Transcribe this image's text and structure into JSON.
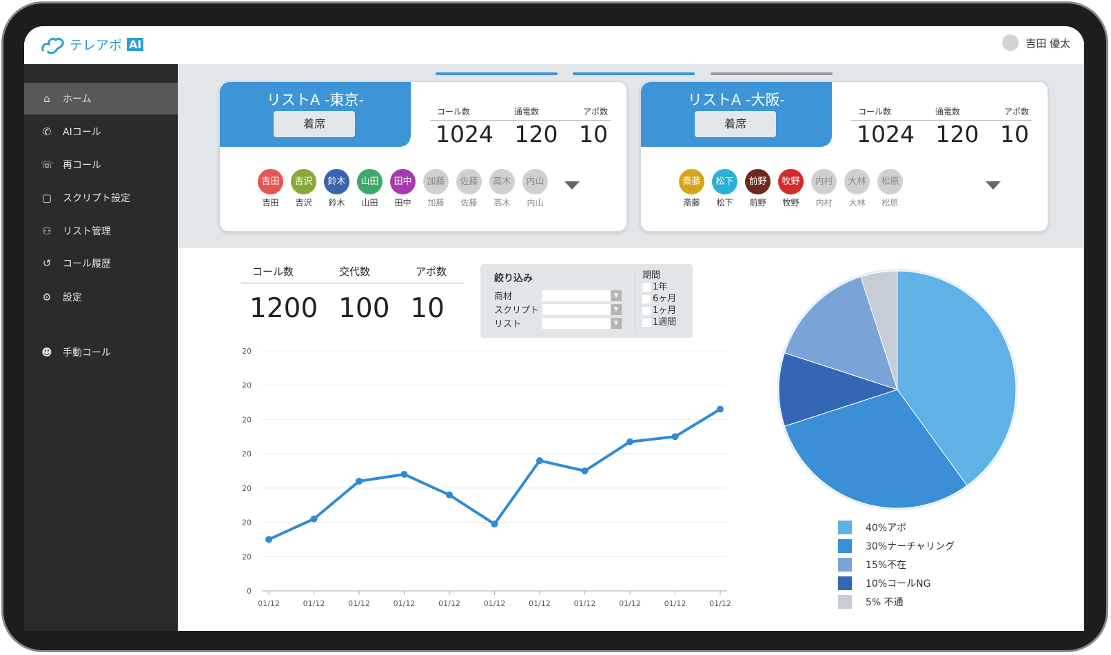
{
  "app": {
    "logo_text": "テレアポ",
    "logo_badge": "AI",
    "user_name": "吉田 優太"
  },
  "sidebar": {
    "items": [
      {
        "label": "ホーム",
        "icon": "home-icon",
        "glyph": "⌂",
        "active": true
      },
      {
        "label": "AIコール",
        "icon": "phone-icon",
        "glyph": "✆"
      },
      {
        "label": "再コール",
        "icon": "phone-redial-icon",
        "glyph": "☏"
      },
      {
        "label": "スクリプト設定",
        "icon": "note-icon",
        "glyph": "▢"
      },
      {
        "label": "リスト管理",
        "icon": "users-icon",
        "glyph": "⚇"
      },
      {
        "label": "コール履歴",
        "icon": "history-icon",
        "glyph": "↺"
      },
      {
        "label": "設定",
        "icon": "gear-icon",
        "glyph": "⚙"
      },
      {
        "label": "手動コール",
        "icon": "manual-call-icon",
        "glyph": "☻"
      }
    ]
  },
  "tabs": [
    {
      "color": "#3d95d8"
    },
    {
      "color": "#3d95d8"
    },
    {
      "color": "#9a9a9a"
    }
  ],
  "lists": [
    {
      "title": "リストA -東京-",
      "status": "着席",
      "stat_labels": [
        "コール数",
        "通電数",
        "アポ数"
      ],
      "stat_values": [
        "1024",
        "120",
        "10"
      ],
      "members": [
        {
          "name": "吉田",
          "color": "#e85555"
        },
        {
          "name": "吉沢",
          "color": "#8aa83a"
        },
        {
          "name": "鈴木",
          "color": "#3a63b0"
        },
        {
          "name": "山田",
          "color": "#3da86b"
        },
        {
          "name": "田中",
          "color": "#a63bb0"
        },
        {
          "name": "加藤",
          "off": true
        },
        {
          "name": "佐藤",
          "off": true
        },
        {
          "name": "高木",
          "off": true
        },
        {
          "name": "内山",
          "off": true
        }
      ]
    },
    {
      "title": "リストA -大阪-",
      "status": "着席",
      "stat_labels": [
        "コール数",
        "通電数",
        "アポ数"
      ],
      "stat_values": [
        "1024",
        "120",
        "10"
      ],
      "members": [
        {
          "name": "斎藤",
          "color": "#d4a51c"
        },
        {
          "name": "松下",
          "color": "#2ab0d6"
        },
        {
          "name": "前野",
          "color": "#6b2a1c"
        },
        {
          "name": "牧野",
          "color": "#d42a2a"
        },
        {
          "name": "内村",
          "off": true
        },
        {
          "name": "大林",
          "off": true
        },
        {
          "name": "松原",
          "off": true
        }
      ]
    }
  ],
  "kpi": {
    "labels": [
      "コール数",
      "交代数",
      "アポ数"
    ],
    "values": [
      "1200",
      "100",
      "10"
    ]
  },
  "filter": {
    "title": "絞り込み",
    "fields": [
      "商材",
      "スクリプト",
      "リスト"
    ],
    "period_label": "期間",
    "periods": [
      "1年",
      "6ヶ月",
      "1ヶ月",
      "1週間"
    ]
  },
  "chart_data": [
    {
      "type": "line",
      "color": "#2f8ad6",
      "categories": [
        "01/12",
        "01/12",
        "01/12",
        "01/12",
        "01/12",
        "01/12",
        "01/12",
        "01/12",
        "01/12",
        "01/12",
        "01/12"
      ],
      "y_tick_labels": [
        "0",
        "20",
        "20",
        "20",
        "20",
        "20",
        "20",
        "20"
      ],
      "values": [
        1.5,
        2.1,
        3.2,
        3.4,
        2.8,
        1.95,
        3.8,
        3.5,
        4.35,
        4.5,
        5.3
      ],
      "ylim": [
        0,
        7
      ],
      "grid": true
    },
    {
      "type": "pie",
      "slices": [
        {
          "label": "40%アポ",
          "value": 40,
          "color": "#5fb1e6"
        },
        {
          "label": "30%ナーチャリング",
          "value": 30,
          "color": "#3a8fd6"
        },
        {
          "label": "10%コールNG",
          "value": 10,
          "color": "#3466b4"
        },
        {
          "label": "15%不在",
          "value": 15,
          "color": "#7aa3d8"
        },
        {
          "label": "5%  不通",
          "value": 5,
          "color": "#c6ccd6"
        }
      ],
      "legend_order": [
        0,
        1,
        3,
        2,
        4
      ],
      "legend": "bottom"
    }
  ]
}
